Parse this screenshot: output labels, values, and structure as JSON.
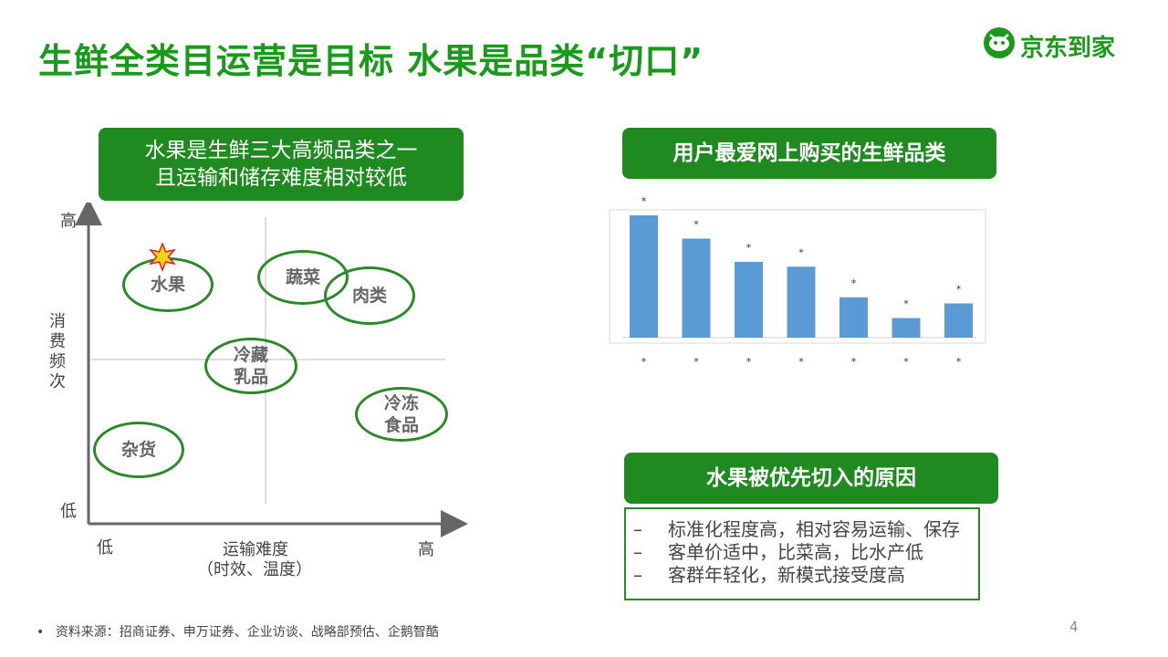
{
  "title": "生鲜全类目运营是目标  水果是品类“切口”",
  "logo": {
    "text": "京东到家",
    "icon": "jd-daojia-logo-icon"
  },
  "left_panel": {
    "header_line1": "水果是生鲜三大高频品类之一",
    "header_line2": "且运输和储存难度相对较低",
    "y_high": "高",
    "y_low": "低",
    "y_axis_label": "消费频次",
    "x_low": "低",
    "x_high": "高",
    "x_axis_label": "运输难度",
    "x_axis_sub": "（时效、温度）",
    "items": [
      {
        "line1": "水果",
        "line2": ""
      },
      {
        "line1": "蔬菜",
        "line2": ""
      },
      {
        "line1": "肉类",
        "line2": ""
      },
      {
        "line1": "冷藏",
        "line2": "乳品"
      },
      {
        "line1": "冷冻",
        "line2": "食品"
      },
      {
        "line1": "杂货",
        "line2": ""
      }
    ],
    "highlight_icon": "star-icon"
  },
  "right_panel": {
    "chart_header": "用户最爱网上购买的生鲜品类",
    "reason_header": "水果被优先切入的原因",
    "reasons": [
      "标准化程度高，相对容易运输、保存",
      "客单价适中，比菜高，比水产低",
      "客群年轻化，新模式接受度高"
    ],
    "reason_bullet": "–"
  },
  "chart_data": {
    "type": "bar",
    "title": "",
    "categories": [
      "*",
      "*",
      "*",
      "*",
      "*",
      "*",
      "*"
    ],
    "values": [
      100,
      81,
      62,
      58,
      33,
      16,
      28
    ],
    "value_labels": [
      "*",
      "*",
      "*",
      "*",
      "*",
      "*",
      "*"
    ],
    "ylim": [
      0,
      100
    ],
    "bar_color": "#5b9bd5",
    "grid": false,
    "xlabel": "",
    "ylabel": ""
  },
  "footer": {
    "bullet": "•",
    "source": "资料来源：招商证券、申万证券、企业访谈、战略部预估、企鹅智酷",
    "page": "4"
  },
  "colors": {
    "brand_green": "#1a9a1a",
    "box_green": "#1f8a1f",
    "bar_blue": "#5b9bd5"
  }
}
